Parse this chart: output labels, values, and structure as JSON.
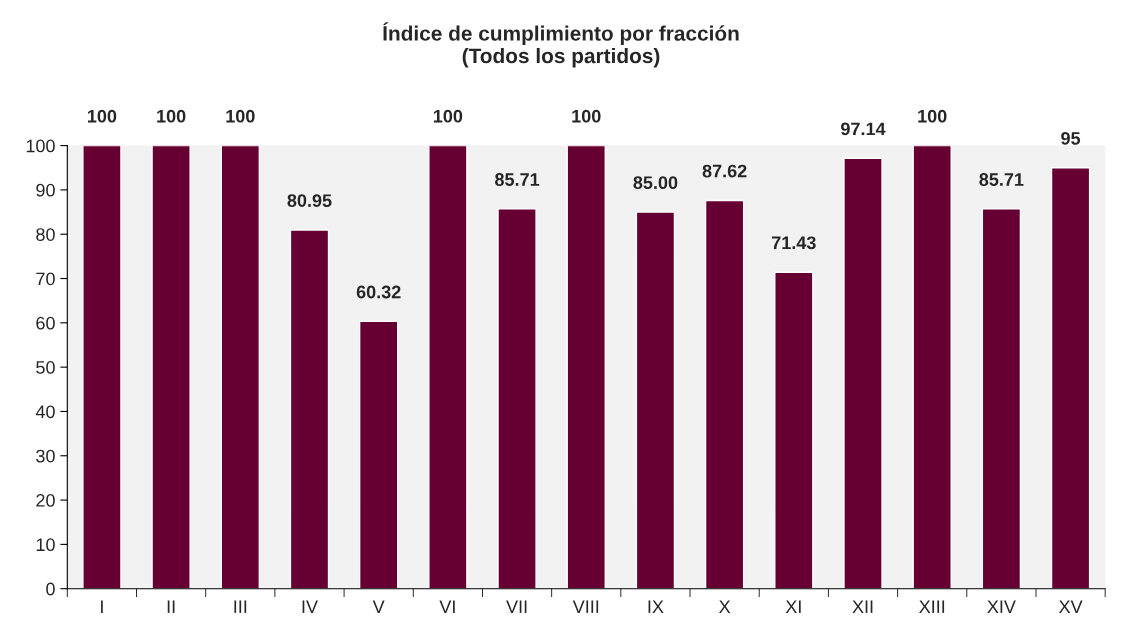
{
  "chart_data": {
    "type": "bar",
    "title": "Índice de cumplimiento por fracción\n(Todos los partidos)",
    "categories": [
      "I",
      "II",
      "III",
      "IV",
      "V",
      "VI",
      "VII",
      "VIII",
      "IX",
      "X",
      "XI",
      "XII",
      "XIII",
      "XIV",
      "XV"
    ],
    "values": [
      100,
      100,
      100,
      80.95,
      60.32,
      100,
      85.71,
      100,
      85.0,
      87.62,
      71.43,
      97.14,
      100,
      85.71,
      95
    ],
    "value_labels": [
      "100",
      "100",
      "100",
      "80.95",
      "60.32",
      "100",
      "85.71",
      "100",
      "85.00",
      "87.62",
      "71.43",
      "97.14",
      "100",
      "85.71",
      "95"
    ],
    "color": "#660033",
    "ylim": [
      0,
      100
    ],
    "yticks": [
      0,
      10,
      20,
      30,
      40,
      50,
      60,
      70,
      80,
      90,
      100
    ],
    "grid": false,
    "legend": false
  }
}
